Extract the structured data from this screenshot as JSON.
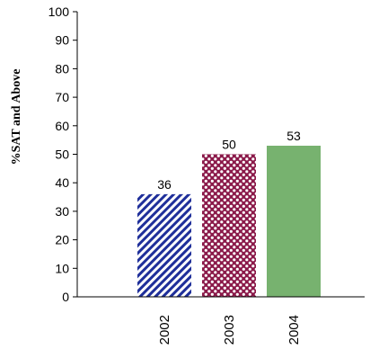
{
  "chart_data": {
    "type": "bar",
    "title": "",
    "xlabel": "",
    "ylabel": "%SAT and Above",
    "ylim": [
      0,
      100
    ],
    "yticks": [
      0,
      10,
      20,
      30,
      40,
      50,
      60,
      70,
      80,
      90,
      100
    ],
    "categories": [
      "2002",
      "2003",
      "2004"
    ],
    "values": [
      36,
      50,
      53
    ],
    "data_labels": [
      "36",
      "50",
      "53"
    ],
    "grid": false,
    "legend": "none",
    "bar_styles": [
      {
        "fill": "diagonal-stripes",
        "color": "#1f2f9a"
      },
      {
        "fill": "dots",
        "color": "#8b1a4a"
      },
      {
        "fill": "solid",
        "color": "#77b26f"
      }
    ]
  }
}
